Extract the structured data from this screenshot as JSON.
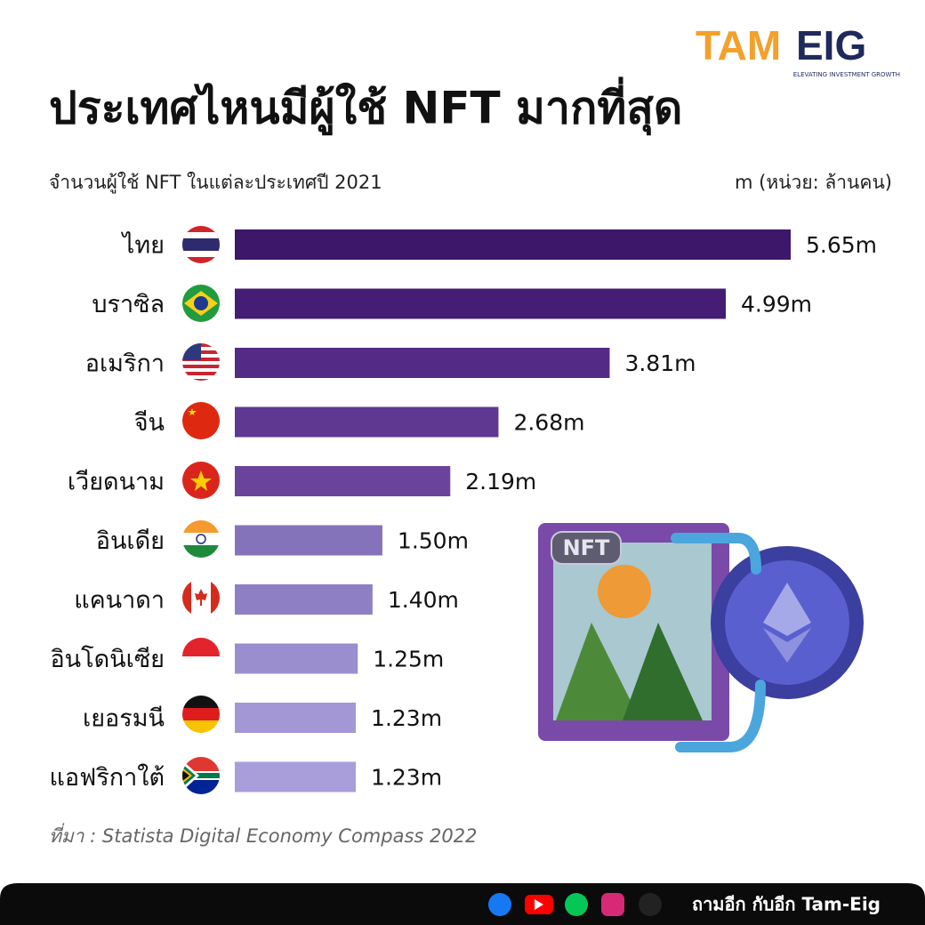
{
  "logo": {
    "name_left": "TAM",
    "name_right": "EIG",
    "tagline": "ELEVATING INVESTMENT GROWTH"
  },
  "chart_data": {
    "type": "bar",
    "orientation": "horizontal",
    "title": "ประเทศไหนมีผู้ใช้ NFT มากที่สุด",
    "subtitle": "จำนวนผู้ใช้ NFT ในแต่ละประเทศปี 2021",
    "unit_label": "m (หน่วย: ล้านคน)",
    "categories": [
      "ไทย",
      "บราซิล",
      "อเมริกา",
      "จีน",
      "เวียดนาม",
      "อินเดีย",
      "แคนาดา",
      "อินโดนิเซีย",
      "เยอรมนี",
      "แอฟริกาใต้"
    ],
    "values": [
      5.65,
      4.99,
      3.81,
      2.68,
      2.19,
      1.5,
      1.4,
      1.25,
      1.23,
      1.23
    ],
    "value_labels": [
      "5.65m",
      "4.99m",
      "3.81m",
      "2.68m",
      "2.19m",
      "1.50m",
      "1.40m",
      "1.25m",
      "1.23m",
      "1.23m"
    ],
    "colors": [
      "#3d1769",
      "#451d74",
      "#532a85",
      "#5f3891",
      "#6a449b",
      "#8473bb",
      "#8e7fc4",
      "#9b8ecf",
      "#a497d6",
      "#a99dda"
    ],
    "source": "ที่มา : Statista Digital Economy Compass 2022"
  },
  "illustration": {
    "label": "NFT"
  },
  "footer": {
    "text": "ถามอีก กับอีก Tam-Eig"
  }
}
